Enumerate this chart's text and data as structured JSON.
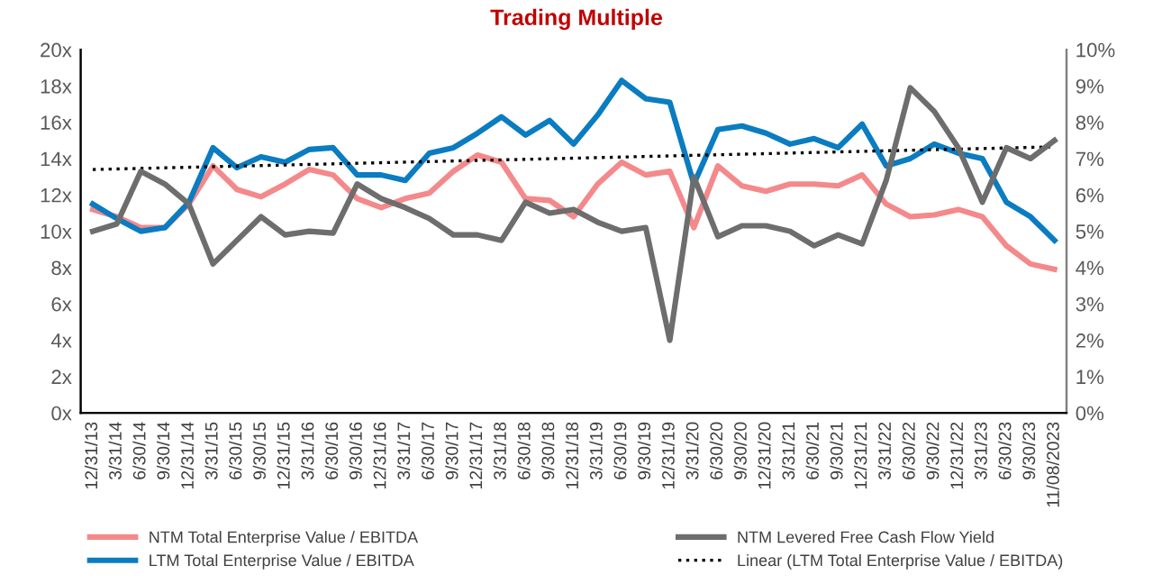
{
  "chart_data": {
    "type": "line",
    "title": "Trading Multiple",
    "categories": [
      "12/31/13",
      "3/31/14",
      "6/30/14",
      "9/30/14",
      "12/31/14",
      "3/31/15",
      "6/30/15",
      "9/30/15",
      "12/31/15",
      "3/31/16",
      "6/30/16",
      "9/30/16",
      "12/31/16",
      "3/31/17",
      "6/30/17",
      "9/30/17",
      "12/31/17",
      "3/31/18",
      "6/30/18",
      "9/30/18",
      "12/31/18",
      "3/31/19",
      "6/30/19",
      "9/30/19",
      "12/31/19",
      "3/31/20",
      "6/30/20",
      "9/30/20",
      "12/31/20",
      "3/31/21",
      "6/30/21",
      "9/30/21",
      "12/31/21",
      "3/31/22",
      "6/30/22",
      "9/30/22",
      "12/31/22",
      "3/31/23",
      "6/30/23",
      "9/30/23",
      "11/08/2023"
    ],
    "series": [
      {
        "name": "NTM Total Enterprise Value / EBITDA",
        "color": "#f4898b",
        "values": [
          11.2,
          10.8,
          10.2,
          10.2,
          11.5,
          13.6,
          12.3,
          11.9,
          12.6,
          13.4,
          13.1,
          11.8,
          11.3,
          11.8,
          12.1,
          13.3,
          14.2,
          13.8,
          11.8,
          11.7,
          10.8,
          12.6,
          13.8,
          13.1,
          13.3,
          10.2,
          13.6,
          12.5,
          12.2,
          12.6,
          12.6,
          12.5,
          13.1,
          11.5,
          10.8,
          10.9,
          11.2,
          10.8,
          9.2,
          8.2,
          7.9
        ]
      },
      {
        "name": "LTM Total Enterprise Value / EBITDA",
        "color": "#0a7cc1",
        "values": [
          11.5,
          10.7,
          10.0,
          10.2,
          11.6,
          14.6,
          13.5,
          14.1,
          13.8,
          14.5,
          14.6,
          13.1,
          13.1,
          12.8,
          14.3,
          14.6,
          15.4,
          16.3,
          15.3,
          16.1,
          14.8,
          16.4,
          18.3,
          17.3,
          17.1,
          12.6,
          15.6,
          15.8,
          15.4,
          14.8,
          15.1,
          14.6,
          15.9,
          13.6,
          14.0,
          14.8,
          14.3,
          14.0,
          11.6,
          10.8,
          9.5
        ]
      },
      {
        "name": "NTM Levered Free Cash Flow Yield",
        "color": "#6d6d6d",
        "axis": "y2",
        "values": [
          5.0,
          5.2,
          6.65,
          6.3,
          5.75,
          4.1,
          4.75,
          5.4,
          4.9,
          5.0,
          4.95,
          6.3,
          5.9,
          5.65,
          5.35,
          4.9,
          4.9,
          4.75,
          5.8,
          5.5,
          5.6,
          5.25,
          5.0,
          5.1,
          2.0,
          6.5,
          4.85,
          5.15,
          5.15,
          5.0,
          4.6,
          4.9,
          4.65,
          6.4,
          8.95,
          8.3,
          7.3,
          5.8,
          7.3,
          7.0,
          7.5
        ]
      },
      {
        "name": "Linear (LTM Total Enterprise Value / EBITDA)",
        "color": "#000000",
        "line_style": "dotted",
        "values": [
          13.4,
          null,
          null,
          null,
          null,
          null,
          null,
          null,
          null,
          null,
          null,
          null,
          null,
          null,
          null,
          null,
          null,
          null,
          null,
          null,
          null,
          null,
          null,
          null,
          null,
          null,
          null,
          null,
          null,
          null,
          null,
          null,
          null,
          null,
          null,
          null,
          null,
          null,
          null,
          null,
          14.65
        ]
      }
    ],
    "ylim": [
      0,
      20
    ],
    "yticks": [
      {
        "value": 0,
        "label": "0x"
      },
      {
        "value": 2,
        "label": "2x"
      },
      {
        "value": 4,
        "label": "4x"
      },
      {
        "value": 6,
        "label": "6x"
      },
      {
        "value": 8,
        "label": "8x"
      },
      {
        "value": 10,
        "label": "10x"
      },
      {
        "value": 12,
        "label": "12x"
      },
      {
        "value": 14,
        "label": "14x"
      },
      {
        "value": 16,
        "label": "16x"
      },
      {
        "value": 18,
        "label": "18x"
      },
      {
        "value": 20,
        "label": "20x"
      }
    ],
    "y2lim": [
      0,
      10
    ],
    "y2ticks": [
      {
        "value": 0,
        "label": "0%"
      },
      {
        "value": 1,
        "label": "1%"
      },
      {
        "value": 2,
        "label": "2%"
      },
      {
        "value": 3,
        "label": "3%"
      },
      {
        "value": 4,
        "label": "4%"
      },
      {
        "value": 5,
        "label": "5%"
      },
      {
        "value": 6,
        "label": "6%"
      },
      {
        "value": 7,
        "label": "7%"
      },
      {
        "value": 8,
        "label": "8%"
      },
      {
        "value": 9,
        "label": "9%"
      },
      {
        "value": 10,
        "label": "10%"
      }
    ],
    "grid": false,
    "legend": "bottom",
    "line_style": "solid",
    "marker": "none"
  }
}
